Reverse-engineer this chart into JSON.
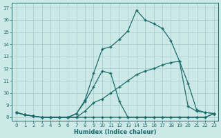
{
  "xlabel": "Humidex (Indice chaleur)",
  "xlim": [
    -0.5,
    23.5
  ],
  "ylim": [
    7.7,
    17.4
  ],
  "xticks": [
    0,
    1,
    2,
    3,
    4,
    5,
    6,
    7,
    8,
    9,
    10,
    11,
    12,
    13,
    14,
    15,
    16,
    17,
    18,
    19,
    20,
    21,
    22,
    23
  ],
  "yticks": [
    8,
    9,
    10,
    11,
    12,
    13,
    14,
    15,
    16,
    17
  ],
  "bg_color": "#cce9e7",
  "grid_color": "#aacfcd",
  "line_color": "#1a6b6b",
  "curve1_x": [
    0,
    1,
    2,
    3,
    4,
    5,
    6,
    7,
    8,
    9,
    10,
    11,
    12,
    13,
    14,
    15,
    16,
    17,
    18,
    19,
    20,
    21,
    22,
    23
  ],
  "curve1_y": [
    8.4,
    8.2,
    8.1,
    8.0,
    8.0,
    8.0,
    8.0,
    8.0,
    8.0,
    8.0,
    8.0,
    8.0,
    8.0,
    8.0,
    8.0,
    8.0,
    8.0,
    8.0,
    8.0,
    8.0,
    8.0,
    8.0,
    8.0,
    8.3
  ],
  "curve2_x": [
    0,
    1,
    2,
    3,
    4,
    5,
    6,
    7,
    8,
    9,
    10,
    11,
    12,
    13,
    14,
    15,
    16,
    17,
    18,
    19,
    20,
    21,
    22,
    23
  ],
  "curve2_y": [
    8.4,
    8.2,
    8.1,
    8.0,
    8.0,
    8.0,
    8.0,
    8.0,
    8.5,
    9.2,
    9.5,
    10.0,
    10.5,
    11.0,
    11.5,
    11.8,
    12.0,
    12.3,
    12.5,
    12.6,
    10.8,
    8.6,
    8.4,
    8.3
  ],
  "curve3_x": [
    0,
    1,
    2,
    3,
    4,
    5,
    6,
    7,
    8,
    9,
    10,
    11,
    12,
    13,
    14,
    15,
    16,
    17,
    18,
    19,
    20,
    21,
    22,
    23
  ],
  "curve3_y": [
    8.4,
    8.2,
    8.1,
    8.0,
    8.0,
    8.0,
    8.0,
    8.3,
    9.3,
    10.5,
    11.8,
    11.6,
    9.3,
    8.0,
    8.0,
    8.0,
    8.0,
    8.0,
    8.0,
    8.0,
    8.0,
    8.0,
    8.0,
    8.3
  ],
  "curve4_x": [
    0,
    1,
    2,
    3,
    4,
    5,
    6,
    7,
    8,
    9,
    10,
    11,
    12,
    13,
    14,
    15,
    16,
    17,
    18,
    19,
    20,
    21,
    22,
    23
  ],
  "curve4_y": [
    8.4,
    8.2,
    8.1,
    8.0,
    8.0,
    8.0,
    8.0,
    8.3,
    9.4,
    11.6,
    13.6,
    13.8,
    14.4,
    15.1,
    16.8,
    16.0,
    15.7,
    15.3,
    14.3,
    12.6,
    8.9,
    8.5,
    8.4,
    8.3
  ]
}
